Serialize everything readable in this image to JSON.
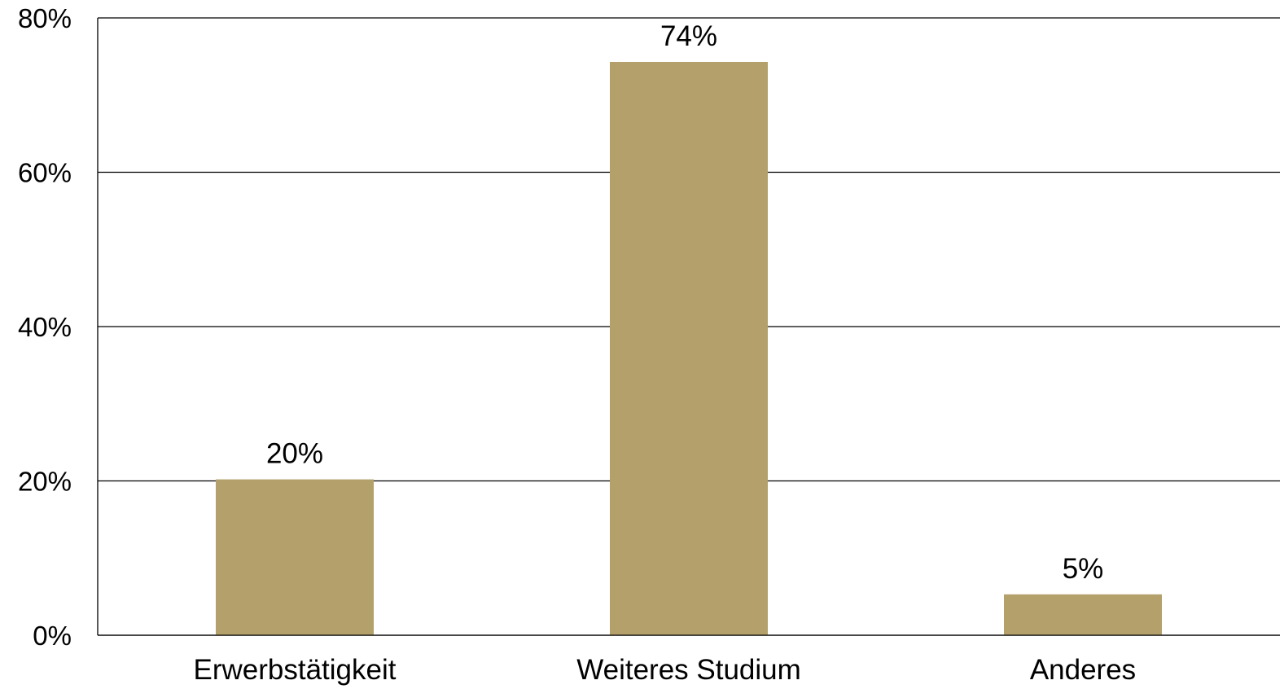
{
  "chart_data": {
    "type": "bar",
    "categories": [
      "Erwerbstätigkeit",
      "Weiteres Studium",
      "Anderes"
    ],
    "values": [
      20.2,
      74.3,
      5.3
    ],
    "data_labels": [
      "20%",
      "74%",
      "5%"
    ],
    "ylim": [
      0,
      80
    ],
    "yticks": [
      0,
      20,
      40,
      60,
      80
    ],
    "ytick_labels": [
      "0%",
      "20%",
      "40%",
      "60%",
      "80%"
    ],
    "grid": true,
    "bar_color": "#b3a06a",
    "title": "",
    "xlabel": "",
    "ylabel": ""
  }
}
